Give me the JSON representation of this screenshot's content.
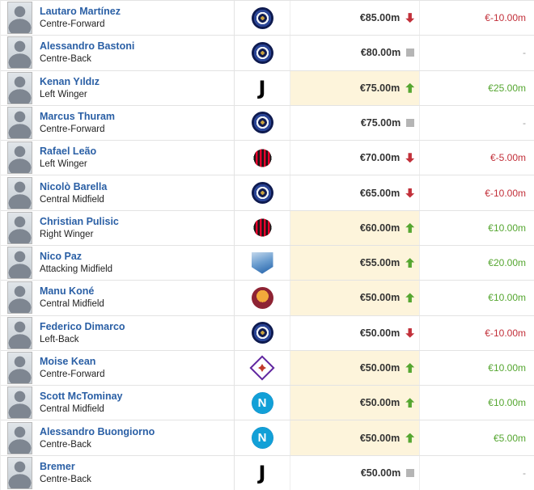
{
  "colors": {
    "link": "#2a5fa5",
    "increase": "#55a630",
    "decrease": "#c2303a",
    "neutral": "#b5b5b5",
    "highlight": "#fdf4db",
    "row_border": "#e3e3e3"
  },
  "table": {
    "players": [
      {
        "name": "Lautaro Martínez",
        "position": "Centre-Forward",
        "club": "inter",
        "club_name": "Inter Milan",
        "value": "€85.00m",
        "trend": "down",
        "change": "€-10.00m"
      },
      {
        "name": "Alessandro Bastoni",
        "position": "Centre-Back",
        "club": "inter",
        "club_name": "Inter Milan",
        "value": "€80.00m",
        "trend": "none",
        "change": "-"
      },
      {
        "name": "Kenan Yıldız",
        "position": "Left Winger",
        "club": "juventus",
        "club_name": "Juventus FC",
        "value": "€75.00m",
        "trend": "up",
        "change": "€25.00m"
      },
      {
        "name": "Marcus Thuram",
        "position": "Centre-Forward",
        "club": "inter",
        "club_name": "Inter Milan",
        "value": "€75.00m",
        "trend": "none",
        "change": "-"
      },
      {
        "name": "Rafael Leão",
        "position": "Left Winger",
        "club": "milan",
        "club_name": "AC Milan",
        "value": "€70.00m",
        "trend": "down",
        "change": "€-5.00m"
      },
      {
        "name": "Nicolò Barella",
        "position": "Central Midfield",
        "club": "inter",
        "club_name": "Inter Milan",
        "value": "€65.00m",
        "trend": "down",
        "change": "€-10.00m"
      },
      {
        "name": "Christian Pulisic",
        "position": "Right Winger",
        "club": "milan",
        "club_name": "AC Milan",
        "value": "€60.00m",
        "trend": "up",
        "change": "€10.00m"
      },
      {
        "name": "Nico Paz",
        "position": "Attacking Midfield",
        "club": "como",
        "club_name": "Como 1907",
        "value": "€55.00m",
        "trend": "up",
        "change": "€20.00m"
      },
      {
        "name": "Manu Koné",
        "position": "Central Midfield",
        "club": "roma",
        "club_name": "AS Roma",
        "value": "€50.00m",
        "trend": "up",
        "change": "€10.00m"
      },
      {
        "name": "Federico Dimarco",
        "position": "Left-Back",
        "club": "inter",
        "club_name": "Inter Milan",
        "value": "€50.00m",
        "trend": "down",
        "change": "€-10.00m"
      },
      {
        "name": "Moise Kean",
        "position": "Centre-Forward",
        "club": "fiorentina",
        "club_name": "ACF Fiorentina",
        "value": "€50.00m",
        "trend": "up",
        "change": "€10.00m"
      },
      {
        "name": "Scott McTominay",
        "position": "Central Midfield",
        "club": "napoli",
        "club_name": "SSC Napoli",
        "value": "€50.00m",
        "trend": "up",
        "change": "€10.00m"
      },
      {
        "name": "Alessandro Buongiorno",
        "position": "Centre-Back",
        "club": "napoli",
        "club_name": "SSC Napoli",
        "value": "€50.00m",
        "trend": "up",
        "change": "€5.00m"
      },
      {
        "name": "Bremer",
        "position": "Centre-Back",
        "club": "juventus",
        "club_name": "Juventus FC",
        "value": "€50.00m",
        "trend": "none",
        "change": "-"
      }
    ]
  }
}
